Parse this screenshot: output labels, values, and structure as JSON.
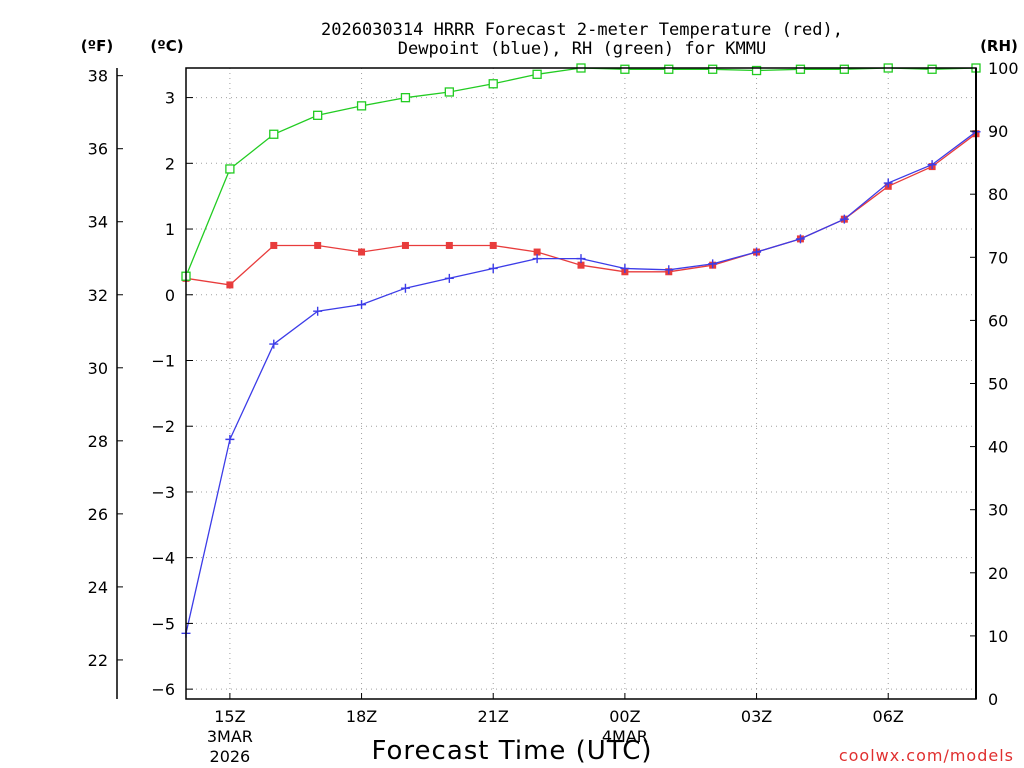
{
  "chart_data": {
    "type": "line",
    "title_line1": "2026030314 HRRR Forecast 2-meter Temperature (red),",
    "title_line2": "Dewpoint (blue), RH (green) for KMMU",
    "xlabel": "Forecast Time (UTC)",
    "credit": "coolwx.com/models",
    "unit_f": "(ºF)",
    "unit_c": "(ºC)",
    "unit_rh": "(RH)",
    "hours": [
      14,
      15,
      16,
      17,
      18,
      19,
      20,
      21,
      22,
      23,
      24,
      25,
      26,
      27,
      28,
      29,
      30,
      31,
      32
    ],
    "x_ticks": [
      {
        "hour": 15,
        "label": "15Z",
        "sub1": "3MAR",
        "sub2": "2026"
      },
      {
        "hour": 18,
        "label": "18Z"
      },
      {
        "hour": 21,
        "label": "21Z"
      },
      {
        "hour": 24,
        "label": "00Z",
        "sub1": "4MAR"
      },
      {
        "hour": 27,
        "label": "03Z"
      },
      {
        "hour": 30,
        "label": "06Z"
      }
    ],
    "y_celsius": {
      "ylim": [
        -6.15,
        3.45
      ],
      "ticks": [
        -6,
        -5,
        -4,
        -3,
        -2,
        -1,
        0,
        1,
        2,
        3
      ]
    },
    "y_fahrenheit": {
      "ticks": [
        22,
        24,
        26,
        28,
        30,
        32,
        34,
        36,
        38
      ]
    },
    "y_rh": {
      "ylim": [
        0,
        100
      ],
      "ticks": [
        0,
        10,
        20,
        30,
        40,
        50,
        60,
        70,
        80,
        90,
        100
      ]
    },
    "series": [
      {
        "name": "Temperature",
        "color": "#e83c3c",
        "marker": "filled-square",
        "values": [
          0.25,
          0.15,
          0.75,
          0.75,
          0.65,
          0.75,
          0.75,
          0.75,
          0.65,
          0.45,
          0.35,
          0.35,
          0.45,
          0.65,
          0.85,
          1.15,
          1.65,
          1.95,
          2.45
        ]
      },
      {
        "name": "Dewpoint",
        "color": "#3c3ce8",
        "marker": "plus",
        "values": [
          -5.15,
          -2.2,
          -0.75,
          -0.25,
          -0.15,
          0.1,
          0.25,
          0.4,
          0.55,
          0.55,
          0.4,
          0.38,
          0.47,
          0.65,
          0.85,
          1.15,
          1.7,
          1.98,
          2.48
        ]
      },
      {
        "name": "RH",
        "color": "#22cc22",
        "marker": "open-square",
        "values": [
          67,
          84,
          89.5,
          92.5,
          94,
          95.3,
          96.2,
          97.5,
          99,
          100,
          99.8,
          99.8,
          99.8,
          99.6,
          99.8,
          99.8,
          100,
          99.8,
          100
        ]
      }
    ]
  }
}
